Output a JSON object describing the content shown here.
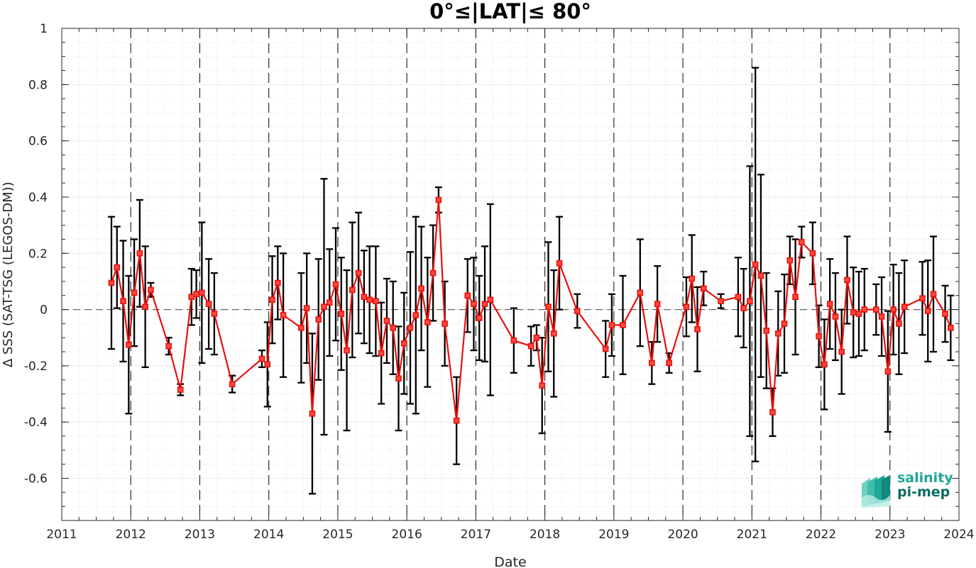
{
  "chart_data": {
    "type": "line",
    "title": "0°≤|LAT|≤ 80°",
    "xlabel": "Date",
    "ylabel": "∆ SSS (SAT-TSG (LEGOS-DM))",
    "xlim": [
      2011,
      2024
    ],
    "ylim": [
      -0.75,
      1.0
    ],
    "xticks": [
      2011,
      2012,
      2013,
      2014,
      2015,
      2016,
      2017,
      2018,
      2019,
      2020,
      2021,
      2022,
      2023,
      2024
    ],
    "yticks": [
      -0.6,
      -0.4,
      -0.2,
      0,
      0.2,
      0.4,
      0.6,
      0.8,
      1
    ],
    "ytick_labels": [
      "-0.6",
      "-0.4",
      "-0.2",
      "0",
      "0.2",
      "0.4",
      "0.6",
      "0.8",
      "1"
    ],
    "grid": true,
    "reference_line": 0,
    "vertical_year_lines": true,
    "colors": {
      "series": "#e8110f",
      "errorbars": "#000000",
      "grid": "#c8c8c8"
    },
    "series": [
      {
        "marker": "square",
        "x": [
          2011.72,
          2011.8,
          2011.89,
          2011.97,
          2012.05,
          2012.13,
          2012.21,
          2012.29,
          2012.55,
          2012.72,
          2012.88,
          2012.95,
          2013.03,
          2013.13,
          2013.21,
          2013.47,
          2013.9,
          2013.98,
          2014.05,
          2014.13,
          2014.21,
          2014.47,
          2014.55,
          2014.63,
          2014.72,
          2014.8,
          2014.88,
          2014.97,
          2015.05,
          2015.13,
          2015.21,
          2015.3,
          2015.38,
          2015.46,
          2015.55,
          2015.63,
          2015.71,
          2015.8,
          2015.88,
          2015.96,
          2016.05,
          2016.13,
          2016.21,
          2016.3,
          2016.38,
          2016.46,
          2016.55,
          2016.72,
          2016.88,
          2016.97,
          2017.05,
          2017.13,
          2017.21,
          2017.55,
          2017.8,
          2017.88,
          2017.96,
          2018.05,
          2018.13,
          2018.21,
          2018.47,
          2018.88,
          2018.97,
          2019.13,
          2019.38,
          2019.55,
          2019.63,
          2019.8,
          2020.05,
          2020.13,
          2020.21,
          2020.3,
          2020.55,
          2020.8,
          2020.88,
          2020.97,
          2021.05,
          2021.13,
          2021.21,
          2021.3,
          2021.38,
          2021.47,
          2021.55,
          2021.63,
          2021.72,
          2021.88,
          2021.97,
          2022.05,
          2022.13,
          2022.21,
          2022.3,
          2022.38,
          2022.47,
          2022.55,
          2022.63,
          2022.8,
          2022.88,
          2022.97,
          2023.05,
          2023.13,
          2023.21,
          2023.47,
          2023.55,
          2023.63,
          2023.8,
          2023.88
        ],
        "y": [
          0.095,
          0.15,
          0.03,
          -0.125,
          0.06,
          0.2,
          0.01,
          0.07,
          -0.13,
          -0.285,
          0.045,
          0.055,
          0.06,
          0.02,
          -0.015,
          -0.265,
          -0.175,
          -0.195,
          0.035,
          0.095,
          -0.02,
          -0.065,
          0.005,
          -0.37,
          -0.035,
          0.01,
          0.025,
          0.09,
          -0.015,
          -0.145,
          0.07,
          0.13,
          0.045,
          0.035,
          0.03,
          -0.155,
          -0.04,
          -0.065,
          -0.245,
          -0.12,
          -0.065,
          -0.02,
          0.075,
          -0.045,
          0.13,
          0.39,
          -0.05,
          -0.395,
          0.05,
          0.02,
          -0.03,
          0.02,
          0.035,
          -0.11,
          -0.13,
          -0.1,
          -0.27,
          0.01,
          -0.085,
          0.165,
          -0.005,
          -0.14,
          -0.055,
          -0.055,
          0.06,
          -0.19,
          0.02,
          -0.19,
          0.01,
          0.11,
          -0.07,
          0.075,
          0.03,
          0.045,
          0.005,
          0.03,
          0.16,
          0.12,
          -0.075,
          -0.365,
          -0.085,
          -0.05,
          0.175,
          0.045,
          0.24,
          0.2,
          -0.095,
          -0.195,
          0.02,
          -0.025,
          -0.15,
          0.105,
          -0.01,
          -0.015,
          0.0,
          0.0,
          -0.025,
          -0.22,
          0.0,
          -0.05,
          0.01,
          0.04,
          -0.005,
          0.055,
          -0.015,
          -0.065
        ],
        "err": [
          0.235,
          0.145,
          0.215,
          0.245,
          0.19,
          0.19,
          0.215,
          0.025,
          0.03,
          0.02,
          0.1,
          0.085,
          0.25,
          0.16,
          0.145,
          0.03,
          0.03,
          0.15,
          0.155,
          0.13,
          0.22,
          0.195,
          0.195,
          0.285,
          0.215,
          0.455,
          0.19,
          0.2,
          0.2,
          0.285,
          0.24,
          0.215,
          0.165,
          0.19,
          0.195,
          0.18,
          0.15,
          0.165,
          0.185,
          0.18,
          0.27,
          0.35,
          0.22,
          0.23,
          0.17,
          0.045,
          0.15,
          0.155,
          0.13,
          0.165,
          0.15,
          0.205,
          0.34,
          0.115,
          0.07,
          0.045,
          0.17,
          0.23,
          0.225,
          0.165,
          0.06,
          0.1,
          0.11,
          0.175,
          0.19,
          0.075,
          0.135,
          0.035,
          0.105,
          0.155,
          0.15,
          0.06,
          0.025,
          0.14,
          0.14,
          0.48,
          0.7,
          0.36,
          0.205,
          0.085,
          0.15,
          0.175,
          0.085,
          0.205,
          0.055,
          0.11,
          0.11,
          0.16,
          0.16,
          0.155,
          0.15,
          0.155,
          0.16,
          0.15,
          0.145,
          0.09,
          0.14,
          0.215,
          0.16,
          0.18,
          0.165,
          0.13,
          0.18,
          0.205,
          0.1,
          0.115
        ]
      }
    ]
  },
  "logo": {
    "line1": "salinity",
    "line2": "pi-mep",
    "color1": "#1ea896",
    "color2": "#0f6b63"
  }
}
